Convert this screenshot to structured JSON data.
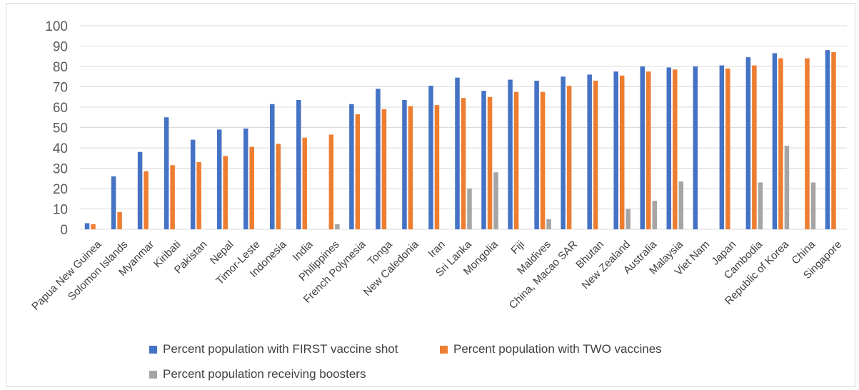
{
  "chart_data": {
    "type": "bar",
    "title": "",
    "xlabel": "",
    "ylabel": "",
    "ylim": [
      0,
      100
    ],
    "yticks": [
      0,
      10,
      20,
      30,
      40,
      50,
      60,
      70,
      80,
      90,
      100
    ],
    "grid": true,
    "legend_position": "bottom",
    "categories": [
      "Papua New Guinea",
      "Solomon Islands",
      "Myanmar",
      "Kiribati",
      "Pakistan",
      "Nepal",
      "Timor-Leste",
      "Indonesia",
      "India",
      "Philippines",
      "French Polynesia",
      "Tonga",
      "New Caledonia",
      "Iran",
      "Sri Lanka",
      "Mongolia",
      "Fiji",
      "Maldives",
      "China, Macao SAR",
      "Bhutan",
      "New Zealand",
      "Australia",
      "Malaysia",
      "Viet Nam",
      "Japan",
      "Cambodia",
      "Republic of Korea",
      "China",
      "Singapore"
    ],
    "series": [
      {
        "name": "Percent population with FIRST vaccine shot",
        "color": "#4472c4",
        "values": [
          3,
          26,
          38,
          55,
          44,
          49,
          49.5,
          61.5,
          63.5,
          null,
          61.5,
          69,
          63.5,
          70.5,
          74.5,
          68,
          73.5,
          73,
          75,
          76,
          77.5,
          80,
          79.5,
          80,
          80.5,
          84.5,
          86.5,
          null,
          88
        ]
      },
      {
        "name": "Percent population with TWO vaccines",
        "color": "#ed7d31",
        "values": [
          2.5,
          8.5,
          28.5,
          31.5,
          33,
          36,
          40.5,
          42,
          45,
          46.5,
          56.5,
          59,
          60.5,
          61,
          64.5,
          65,
          67.5,
          67.5,
          70.5,
          73,
          75.5,
          77.5,
          78.5,
          null,
          79,
          80.5,
          84,
          84,
          87
        ]
      },
      {
        "name": "Percent population receiving boosters",
        "color": "#a5a5a5",
        "values": [
          null,
          null,
          null,
          null,
          null,
          null,
          null,
          null,
          null,
          2.5,
          null,
          null,
          null,
          null,
          20,
          28,
          null,
          5,
          null,
          null,
          10,
          14,
          23.5,
          null,
          null,
          23,
          41,
          23,
          null
        ]
      }
    ]
  }
}
